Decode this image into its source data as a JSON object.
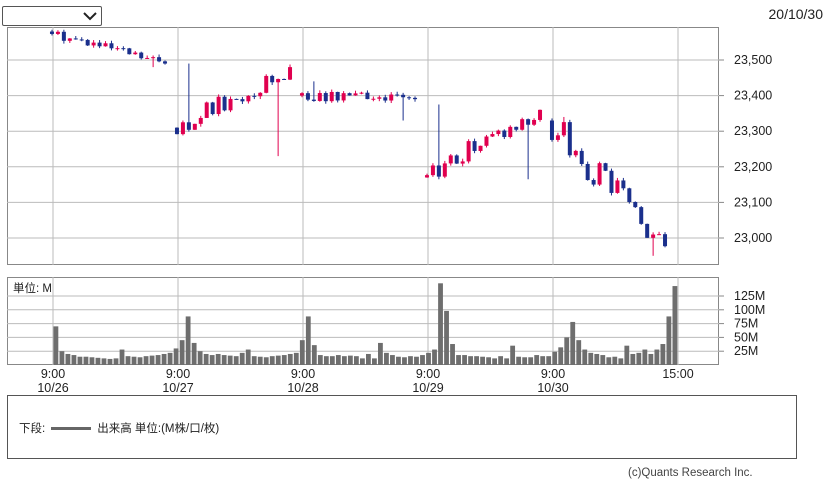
{
  "header": {
    "date": "20/10/30"
  },
  "legend": {
    "prefix": "下段:",
    "label": "出来高 単位:(M株/口/枚)"
  },
  "copyright": "(c)Quants Research Inc.",
  "colors": {
    "up": "#e0004f",
    "down": "#1a2f8c",
    "volume": "#6e6e6e",
    "grid": "#bbbbbb"
  },
  "chart_data": [
    {
      "type": "candlestick",
      "yaxis_ticks": [
        "23,500",
        "23,400",
        "23,300",
        "23,200",
        "23,100",
        "23,000"
      ],
      "yaxis_tick_values": [
        23500,
        23400,
        23300,
        23200,
        23100,
        23000
      ],
      "ylim": [
        22930,
        23610
      ],
      "days": [
        {
          "label": "10/26",
          "open": 23580,
          "close": 23490,
          "high": 23585,
          "low": 23480
        },
        {
          "label": "10/27",
          "open": 23310,
          "close": 23480,
          "high": 23490,
          "low": 23230
        },
        {
          "label": "10/28",
          "open": 23400,
          "close": 23390,
          "high": 23440,
          "low": 23330
        },
        {
          "label": "10/29",
          "open": 23170,
          "close": 23360,
          "high": 23375,
          "low": 23165
        },
        {
          "label": "10/30",
          "open": 23330,
          "close": 22977,
          "high": 23340,
          "low": 22950
        }
      ],
      "grid": true
    },
    {
      "type": "bar",
      "unit_label": "単位: M",
      "yaxis_ticks": [
        "125M",
        "100M",
        "75M",
        "50M",
        "25M"
      ],
      "yaxis_tick_values": [
        125,
        100,
        75,
        50,
        25
      ],
      "ylim": [
        0,
        150
      ],
      "values": [
        70,
        25,
        20,
        18,
        15,
        15,
        14,
        13,
        12,
        11,
        12,
        28,
        16,
        15,
        14,
        16,
        17,
        18,
        20,
        22,
        30,
        45,
        88,
        40,
        25,
        20,
        18,
        20,
        18,
        17,
        16,
        22,
        28,
        16,
        15,
        14,
        16,
        17,
        18,
        20,
        22,
        45,
        88,
        36,
        18,
        16,
        16,
        18,
        16,
        17,
        16,
        12,
        20,
        12,
        40,
        22,
        18,
        15,
        14,
        16,
        15,
        18,
        22,
        28,
        148,
        98,
        38,
        18,
        18,
        16,
        16,
        15,
        14,
        12,
        16,
        12,
        35,
        15,
        14,
        14,
        18,
        16,
        16,
        24,
        32,
        50,
        78,
        45,
        28,
        22,
        20,
        18,
        14,
        15,
        12,
        35,
        20,
        22,
        28,
        20,
        28,
        38,
        88,
        143
      ],
      "grid": true
    }
  ],
  "xaxis": {
    "ticks": [
      {
        "time": "9:00",
        "date": "10/26"
      },
      {
        "time": "9:00",
        "date": "10/27"
      },
      {
        "time": "9:00",
        "date": "10/28"
      },
      {
        "time": "9:00",
        "date": "10/29"
      },
      {
        "time": "9:00",
        "date": "10/30"
      },
      {
        "time": "15:00",
        "date": ""
      }
    ]
  }
}
